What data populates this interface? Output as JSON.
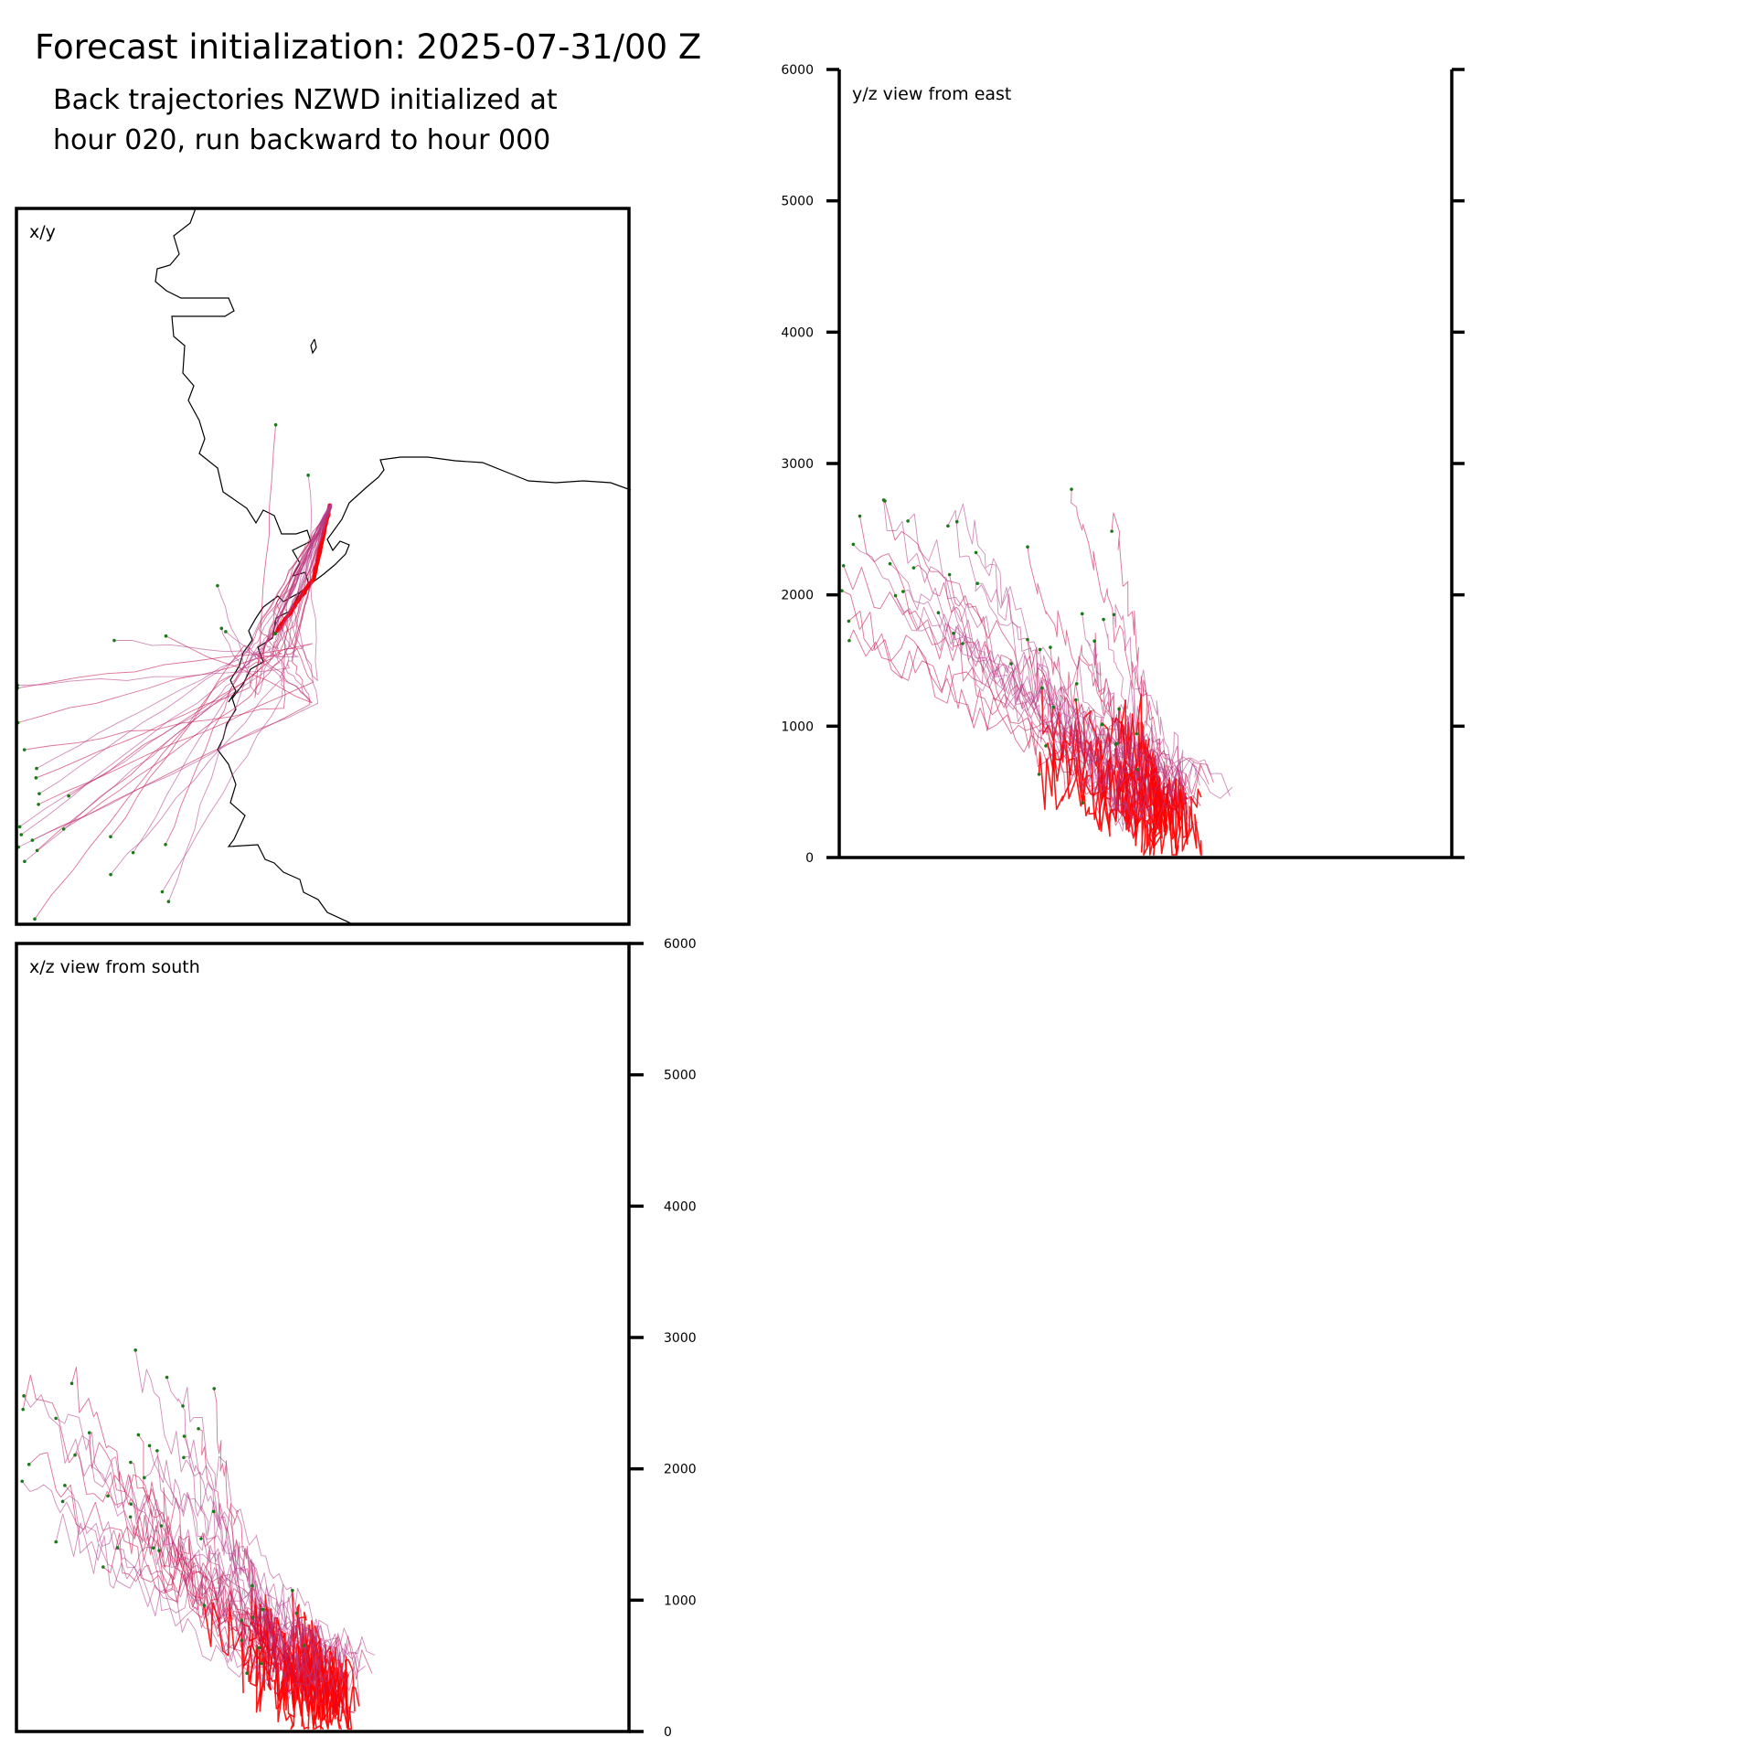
{
  "figure": {
    "title": "Forecast initialization: 2025-07-31/00 Z",
    "subtitle_line1": "Back trajectories NZWD initialized at",
    "subtitle_line2": "hour 020, run backward to hour 000"
  },
  "colors": {
    "frame": "#000000",
    "trajectory_late": "#ff0000",
    "trajectory_mid": "#c8104a",
    "trajectory_early": "#b4408c",
    "endpoint_marker": "#1a7a1a",
    "coastline": "#000000"
  },
  "chart_data": [
    {
      "id": "xy",
      "type": "line",
      "panel_label": "x/y",
      "description_axes": "horizontal map view (longitude/latitude), no tick labels",
      "grid": false,
      "coastline": true
    },
    {
      "id": "yz",
      "type": "line",
      "panel_label": "y/z view from east",
      "ylim": [
        0,
        6000
      ],
      "yticks": [
        0,
        1000,
        2000,
        3000,
        4000,
        5000,
        6000
      ],
      "ytick_labels": [
        "0",
        "1000",
        "2000",
        "3000",
        "4000",
        "5000",
        "6000"
      ],
      "ytick_side": "left",
      "grid": false
    },
    {
      "id": "xz",
      "type": "line",
      "panel_label": "x/z view from south",
      "ylim": [
        0,
        6000
      ],
      "yticks": [
        0,
        1000,
        2000,
        3000,
        4000,
        5000,
        6000
      ],
      "ytick_labels": [
        "0",
        "1000",
        "2000",
        "3000",
        "4000",
        "5000",
        "6000"
      ],
      "ytick_side": "right",
      "grid": false
    }
  ]
}
